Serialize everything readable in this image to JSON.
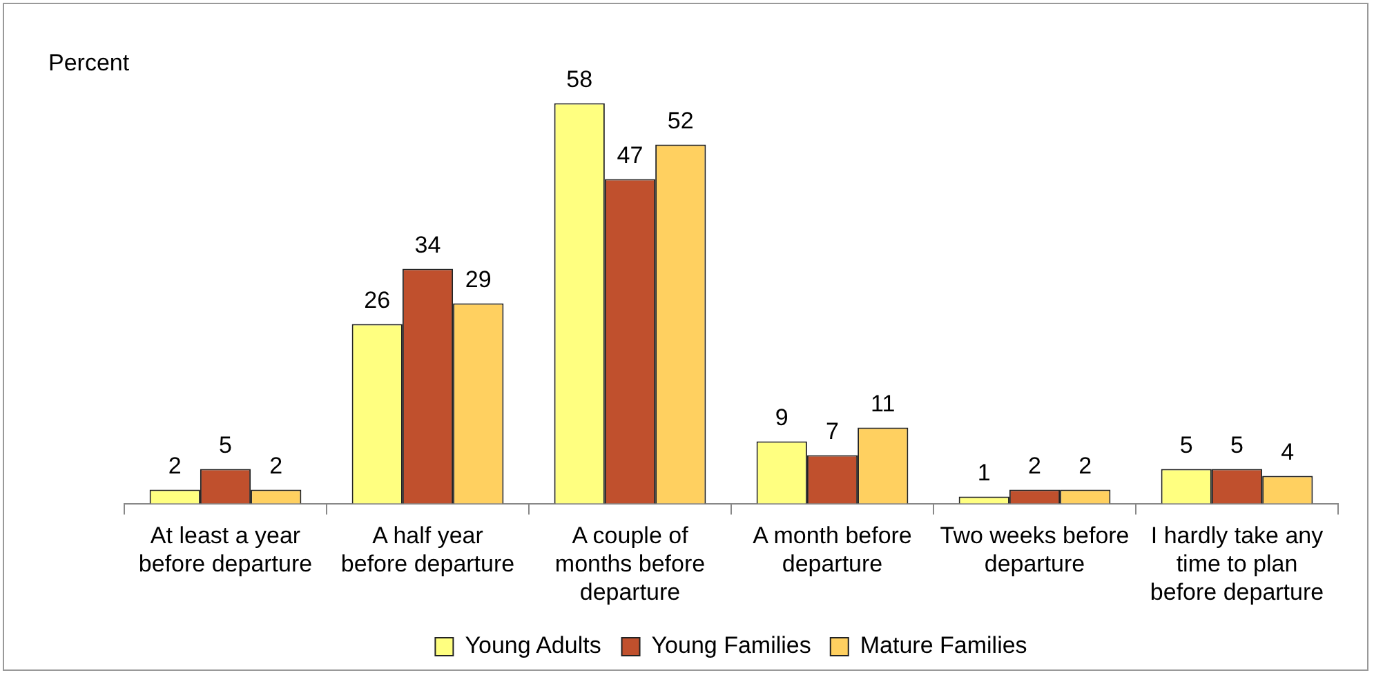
{
  "chart_data": {
    "type": "bar",
    "ylabel": "Percent",
    "categories": [
      "At least a year before departure",
      "A half year before departure",
      "A couple of months before departure",
      "A month before departure",
      "Two weeks before departure",
      "I hardly take any time to plan before departure"
    ],
    "series": [
      {
        "name": "Young Adults",
        "color": "#ffff80",
        "values": [
          2,
          26,
          58,
          9,
          1,
          5
        ]
      },
      {
        "name": "Young Families",
        "color": "#c0502d",
        "values": [
          5,
          34,
          47,
          7,
          2,
          5
        ]
      },
      {
        "name": "Mature Families",
        "color": "#ffd060",
        "values": [
          2,
          29,
          52,
          11,
          2,
          4
        ]
      }
    ],
    "data_labels": true,
    "grid": false,
    "legend": "bottom"
  }
}
